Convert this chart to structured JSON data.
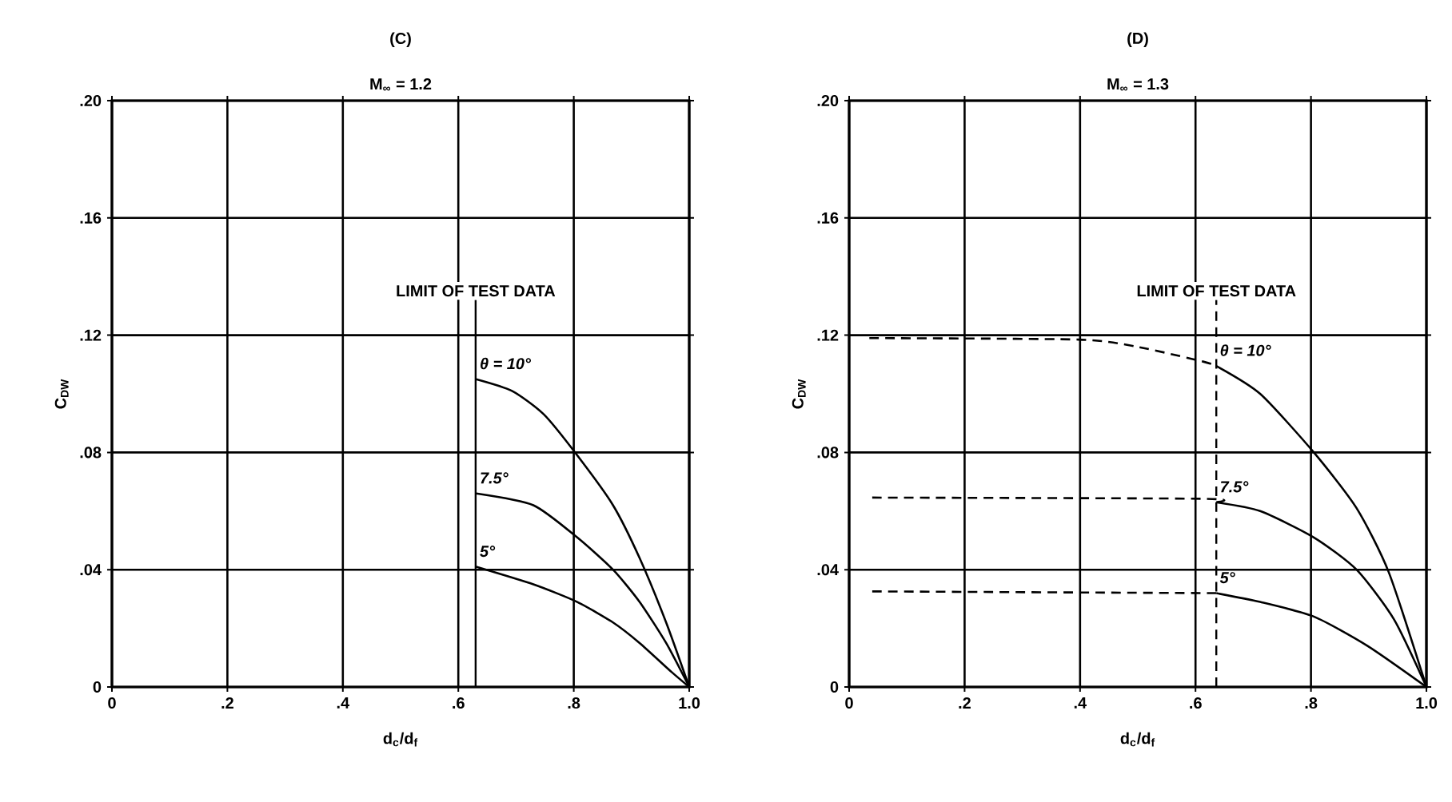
{
  "chart_data": [
    {
      "type": "line",
      "title": "(C)",
      "subtitle": "M$_{∞}$ = 1.2",
      "xlabel": "d$_{c}$/d$_{f}$",
      "ylabel": "C$_{DW}$",
      "xlim": [
        0,
        1.0
      ],
      "ylim": [
        0,
        0.2
      ],
      "xticks": [
        0,
        {
          "value": 0.2,
          "label": ".2"
        },
        {
          "value": 0.4,
          "label": ".4"
        },
        {
          "value": 0.6,
          "label": ".6"
        },
        {
          "value": 0.8,
          "label": ".8"
        },
        {
          "value": 1.0,
          "label": "1.0"
        }
      ],
      "yticks": [
        0,
        {
          "value": 0.04,
          "label": ".04"
        },
        {
          "value": 0.08,
          "label": ".08"
        },
        {
          "value": 0.12,
          "label": ".12"
        },
        {
          "value": 0.16,
          "label": ".16"
        },
        {
          "value": 0.2,
          "label": ".20"
        }
      ],
      "grid": true,
      "marker": "none",
      "ref_lines": [
        {
          "axis": "x",
          "value": 0.63,
          "label": "LIMIT OF TEST DATA",
          "line_style": "solid",
          "color": "#000000"
        }
      ],
      "series": [
        {
          "name": "θ = 10°",
          "color": "#000000",
          "line_style": "solid",
          "x": [
            0.631,
            0.693,
            0.748,
            0.806,
            0.868,
            0.914,
            0.96,
            1.0
          ],
          "values": [
            0.105,
            0.101,
            0.093,
            0.079,
            0.062,
            0.044,
            0.022,
            0
          ]
        },
        {
          "name": "7.5°",
          "color": "#000000",
          "line_style": "solid",
          "x": [
            0.631,
            0.73,
            0.806,
            0.868,
            0.914,
            0.96,
            1.0
          ],
          "values": [
            0.066,
            0.062,
            0.051,
            0.04,
            0.029,
            0.015,
            0
          ]
        },
        {
          "name": "5°",
          "color": "#000000",
          "line_style": "solid",
          "x": [
            0.631,
            0.73,
            0.806,
            0.868,
            0.914,
            0.97,
            1.0
          ],
          "values": [
            0.041,
            0.035,
            0.029,
            0.022,
            0.015,
            0.005,
            0
          ]
        }
      ]
    },
    {
      "type": "line",
      "title": "(D)",
      "subtitle": "M$_{∞}$ = 1.3",
      "xlabel": "d$_{c}$/d$_{f}$",
      "ylabel": "C$_{DW}$",
      "xlim": [
        0,
        1.0
      ],
      "ylim": [
        0,
        0.2
      ],
      "xticks": [
        0,
        {
          "value": 0.2,
          "label": ".2"
        },
        {
          "value": 0.4,
          "label": ".4"
        },
        {
          "value": 0.6,
          "label": ".6"
        },
        {
          "value": 0.8,
          "label": ".8"
        },
        {
          "value": 1.0,
          "label": "1.0"
        }
      ],
      "yticks": [
        0,
        {
          "value": 0.04,
          "label": ".04"
        },
        {
          "value": 0.08,
          "label": ".08"
        },
        {
          "value": 0.12,
          "label": ".12"
        },
        {
          "value": 0.16,
          "label": ".16"
        },
        {
          "value": 0.2,
          "label": ".20"
        }
      ],
      "grid": true,
      "marker": "none",
      "ref_lines": [
        {
          "axis": "x",
          "value": 0.636,
          "label": "LIMIT OF TEST DATA",
          "line_style": "dashed",
          "color": "#000000"
        }
      ],
      "series": [
        {
          "name": "θ = 10°",
          "color": "#000000",
          "line_style": "solid",
          "x": [
            0.636,
            0.712,
            0.805,
            0.879,
            0.935,
            1.0
          ],
          "values": [
            0.1095,
            0.1,
            0.08,
            0.061,
            0.039,
            0
          ]
        },
        {
          "name": "7.5°",
          "color": "#000000",
          "line_style": "solid",
          "x": [
            0.636,
            0.712,
            0.805,
            0.879,
            0.944,
            1.0
          ],
          "values": [
            0.063,
            0.06,
            0.051,
            0.04,
            0.023,
            0
          ]
        },
        {
          "name": "5°",
          "color": "#000000",
          "line_style": "solid",
          "x": [
            0.636,
            0.712,
            0.805,
            0.898,
            1.0
          ],
          "values": [
            0.032,
            0.029,
            0.024,
            0.014,
            0
          ]
        },
        {
          "color": "#000000",
          "line_style": "dashed",
          "x": [
            0.035,
            0.397,
            0.5,
            0.613,
            0.636
          ],
          "values": [
            0.119,
            0.1185,
            0.116,
            0.111,
            0.1095
          ]
        },
        {
          "color": "#000000",
          "line_style": "dashed",
          "x": [
            0.04,
            0.613,
            0.636
          ],
          "values": [
            0.0646,
            0.0642,
            0.063
          ]
        },
        {
          "color": "#000000",
          "line_style": "dashed",
          "x": [
            0.04,
            0.636
          ],
          "values": [
            0.0326,
            0.032
          ]
        }
      ]
    }
  ]
}
